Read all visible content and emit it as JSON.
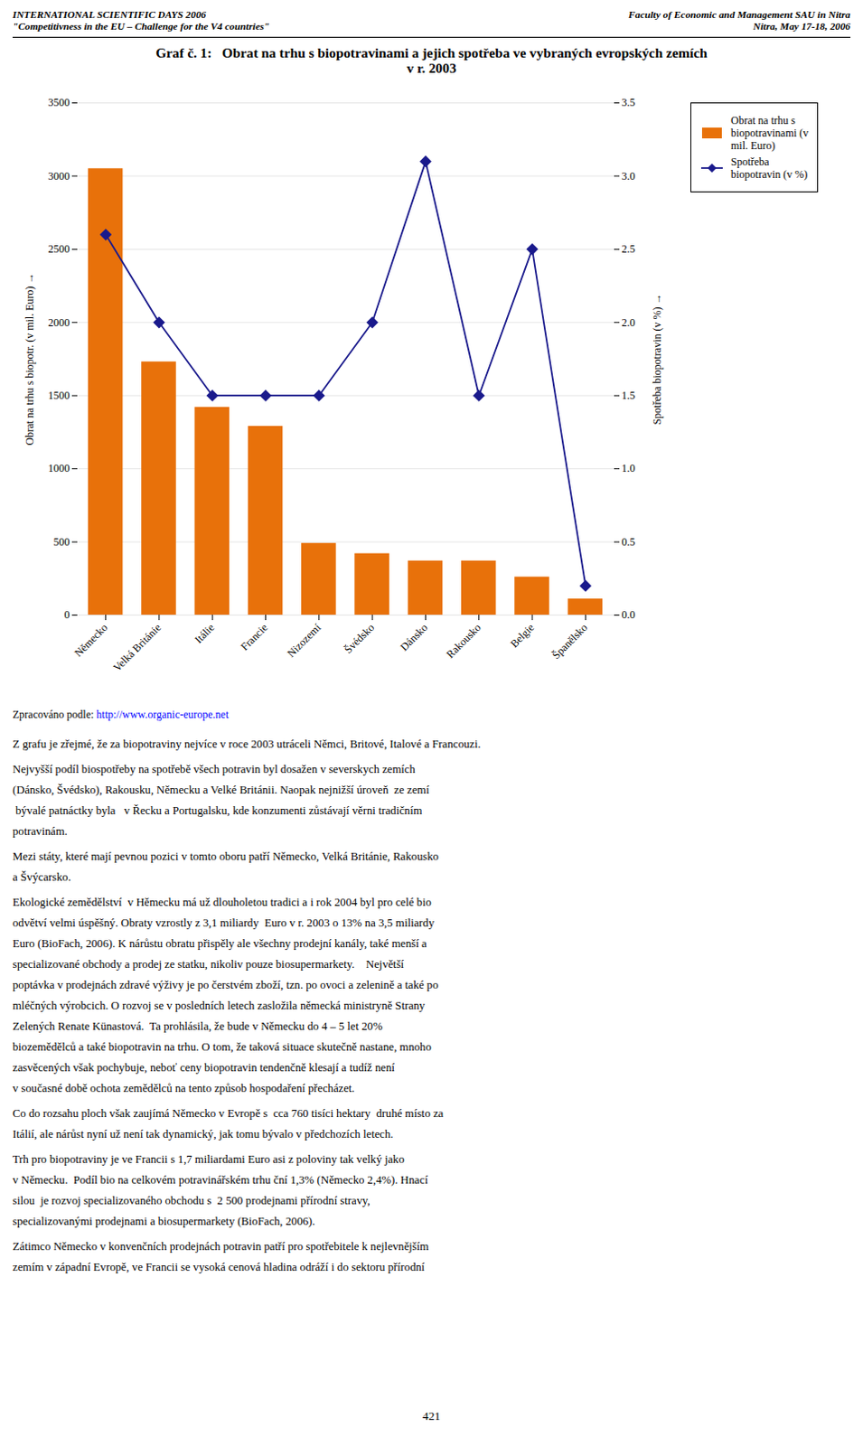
{
  "header": {
    "left": [
      "INTERNATIONAL SCIENTIFIC DAYS 2006",
      "\"Competitivness in the EU – Challenge for the V4 countries\""
    ],
    "right": [
      "Faculty of Economic and Management SAU in Nitra",
      "Nitra, May 17-18, 2006"
    ]
  },
  "chart_data": {
    "type": "bar",
    "title": "Graf č. 1:   Obrat na trhu s biopotravinami a jejich spotřeba ve vybraných evropských zemích",
    "subtitle": "v r. 2003",
    "categories": [
      "Německo",
      "Velká Británie",
      "Itálie",
      "Francie",
      "Nizozemí",
      "Švédsko",
      "Dánsko",
      "Rakousko",
      "Belgie",
      "Španělsko"
    ],
    "series": [
      {
        "name": "Obrat na trhu s\nbiopotravinami (v\nmil. Euro)",
        "type": "bar",
        "color": "#E8710A",
        "values": [
          3050,
          1730,
          1420,
          1290,
          490,
          420,
          370,
          370,
          260,
          110
        ]
      },
      {
        "name": "Spotřeba\nbiopotravin (v %)",
        "type": "line",
        "color": "#1A1A8C",
        "marker": "diamond",
        "axis": "y2",
        "values": [
          2.6,
          2.0,
          1.5,
          1.5,
          1.5,
          2.0,
          3.1,
          1.5,
          2.5,
          0.2
        ]
      }
    ],
    "ylabel": "Obrat na trhu s biopotr. (v mil. Euro)",
    "y2label": "Spotřeba biopotravin (v %)",
    "ylim": [
      0,
      3500
    ],
    "yticks": [
      0,
      500,
      1000,
      1500,
      2000,
      2500,
      3000,
      3500
    ],
    "y2lim": [
      0,
      3.5
    ],
    "y2ticks": [
      {
        "value": 0,
        "label": "0.0"
      },
      0.5,
      {
        "value": 1,
        "label": "1.0"
      },
      1.5,
      {
        "value": 2,
        "label": "2.0"
      },
      2.5,
      {
        "value": 3,
        "label": "3.0"
      },
      3.5
    ],
    "grid": true,
    "legend": "right"
  },
  "source": {
    "prefix": "Zpracováno podle: ",
    "url": "http://www.organic-europe.net"
  },
  "body": [
    "Z grafu je zřejmé, že za biopotraviny nejvíce v roce 2003 utráceli Němci, Britové, Italové a Francouzi.",
    "Nejvyšší podíl biospotřeby na spotřebě všech potravin byl dosažen v severskych zemích\n(Dánsko, Švédsko), Rakousku, Německu a Velké Británii. Naopak nejnižší úroveň  ze zemí\n bývalé patnáctky byla   v Řecku a Portugalsku, kde konzumenti zůstávají věrni tradičním\npotravinám.",
    "Mezi státy, které mají pevnou pozici v tomto oboru patří Německo, Velká Británie, Rakousko\na Švýcarsko.",
    "Ekologické zemědělství  v Нěmecku má už dlouholetou tradici a i rok 2004 byl pro celé bio\nodvětví velmi úspěšný. Obraty vzrostly z 3,1 miliardy  Euro v r. 2003 o 13% na 3,5 miliardy\nEuro (BioFach, 2006). K nárůstu obratu přispěly ale všechny prodejní kanály, také menší a\nspecializované obchody a prodej ze statku, nikoliv pouze biosupermarkety.    Největší\npoptávka v prodejnách zdravé výživy je po čerstvém zboží, tzn. po ovoci a zelenině a také po\nmléčných výrobcich. O rozvoj se v posledních letech zasložila německá ministryně Strany\nZelených Renate Künastová.  Ta prohlásila, že bude v Německu do 4 – 5 let 20%\nbiozemědělců a také biopotravin na trhu. O tom, že taková situace skutečně nastane, mnoho\nzasvěcených však pochybuje, neboť ceny biopotravin tendenčně klesají a tudíž není\nv současné době ochota zemědělců na tento způsob hospodaření přecházet.",
    "Co do rozsahu ploch však zaujímá Německo v Evropě s  cca 760 tisíci hektary  druhé místo za\nItálií, ale nárůst nyní už není tak dynamický, jak tomu bývalo v předchozích letech.",
    "Trh pro biopotraviny je ve Francii s 1,7 miliardami Euro asi z poloviny tak velký jako\nv Německu.  Podíl bio na celkovém potravinářském trhu ční 1,3% (Německo 2,4%). Hnací\nsilou  je rozvoj specializovaného obchodu s  2 500 prodejnami přírodní stravy,\nspecializovanými prodejnami a biosupermarkety (BioFach, 2006).",
    "Zátimco Německo v konvenčních prodejnách potravin patří pro spotřebitele k nejlevnějším\nzemím v západní Evropě, ve Francii se vysoká cenová hladina odráží i do sektoru přírodní"
  ],
  "page_number": "421"
}
